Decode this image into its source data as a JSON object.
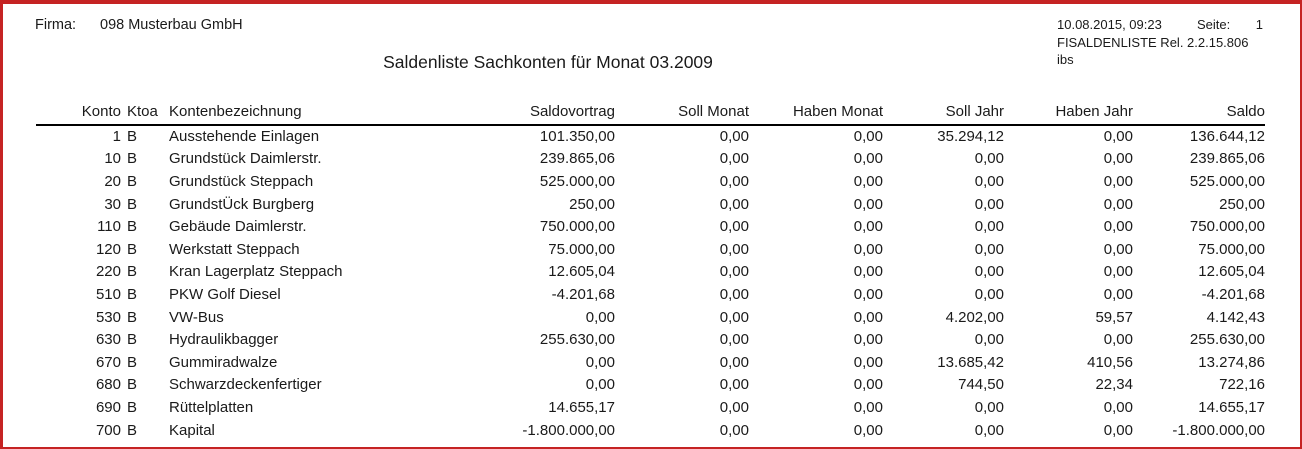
{
  "page": {
    "border_color": "#c52323",
    "background": "#ffffff"
  },
  "header": {
    "firma_label": "Firma:",
    "firma_value": "098 Musterbau GmbH",
    "datetime": "10.08.2015, 09:23",
    "seite_label": "Seite:",
    "seite_value": "1",
    "program": "FISALDENLISTE Rel. 2.2.15.806",
    "program_sub": "ibs",
    "title": "Saldenliste Sachkonten für Monat 03.2009"
  },
  "table": {
    "columns": [
      "Konto",
      "Ktoa",
      "Kontenbezeichnung",
      "Saldovortrag",
      "Soll Monat",
      "Haben Monat",
      "Soll Jahr",
      "Haben Jahr",
      "Saldo"
    ],
    "rows": [
      [
        "1",
        "B",
        "Ausstehende Einlagen",
        "101.350,00",
        "0,00",
        "0,00",
        "35.294,12",
        "0,00",
        "136.644,12"
      ],
      [
        "10",
        "B",
        "Grundstück Daimlerstr.",
        "239.865,06",
        "0,00",
        "0,00",
        "0,00",
        "0,00",
        "239.865,06"
      ],
      [
        "20",
        "B",
        "Grundstück Steppach",
        "525.000,00",
        "0,00",
        "0,00",
        "0,00",
        "0,00",
        "525.000,00"
      ],
      [
        "30",
        "B",
        "GrundstÜck Burgberg",
        "250,00",
        "0,00",
        "0,00",
        "0,00",
        "0,00",
        "250,00"
      ],
      [
        "110",
        "B",
        "Gebäude Daimlerstr.",
        "750.000,00",
        "0,00",
        "0,00",
        "0,00",
        "0,00",
        "750.000,00"
      ],
      [
        "120",
        "B",
        "Werkstatt Steppach",
        "75.000,00",
        "0,00",
        "0,00",
        "0,00",
        "0,00",
        "75.000,00"
      ],
      [
        "220",
        "B",
        "Kran Lagerplatz Steppach",
        "12.605,04",
        "0,00",
        "0,00",
        "0,00",
        "0,00",
        "12.605,04"
      ],
      [
        "510",
        "B",
        "PKW Golf Diesel",
        "-4.201,68",
        "0,00",
        "0,00",
        "0,00",
        "0,00",
        "-4.201,68"
      ],
      [
        "530",
        "B",
        "VW-Bus",
        "0,00",
        "0,00",
        "0,00",
        "4.202,00",
        "59,57",
        "4.142,43"
      ],
      [
        "630",
        "B",
        "Hydraulikbagger",
        "255.630,00",
        "0,00",
        "0,00",
        "0,00",
        "0,00",
        "255.630,00"
      ],
      [
        "670",
        "B",
        "Gummiradwalze",
        "0,00",
        "0,00",
        "0,00",
        "13.685,42",
        "410,56",
        "13.274,86"
      ],
      [
        "680",
        "B",
        "Schwarzdeckenfertiger",
        "0,00",
        "0,00",
        "0,00",
        "744,50",
        "22,34",
        "722,16"
      ],
      [
        "690",
        "B",
        "Rüttelplatten",
        "14.655,17",
        "0,00",
        "0,00",
        "0,00",
        "0,00",
        "14.655,17"
      ],
      [
        "700",
        "B",
        "Kapital",
        "-1.800.000,00",
        "0,00",
        "0,00",
        "0,00",
        "0,00",
        "-1.800.000,00"
      ]
    ]
  }
}
